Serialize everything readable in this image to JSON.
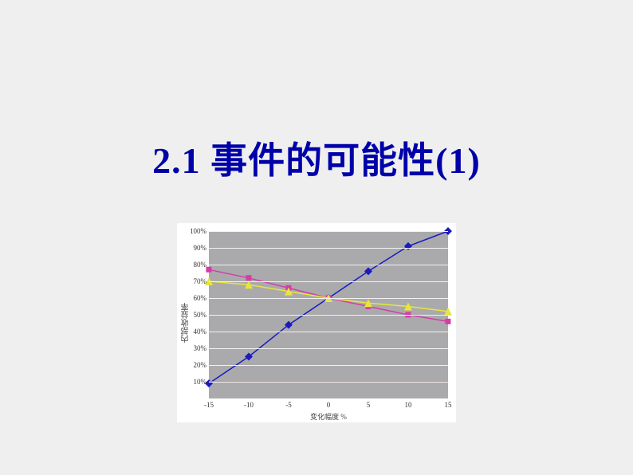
{
  "title": "2.1 事件的可能性(1)",
  "chart": {
    "type": "line",
    "background_color": "#aaaaac",
    "grid_color": "#f2f2f2",
    "outer_background": "#ffffff",
    "ylabel": "内部收益率",
    "xlabel": "变化幅度 %",
    "xlim": [
      -15,
      15
    ],
    "ylim": [
      0,
      100
    ],
    "xticks": [
      -15,
      -10,
      -5,
      0,
      5,
      10,
      15
    ],
    "yticks": [
      10,
      20,
      30,
      40,
      50,
      60,
      70,
      80,
      90,
      100
    ],
    "ytick_suffix": "%",
    "label_fontsize": 10,
    "tick_fontsize": 9,
    "title_color": "#0000aa",
    "title_fontsize": 46,
    "series": [
      {
        "name": "blue-line",
        "color": "#1a1abf",
        "marker": "diamond",
        "marker_size": 5,
        "line_width": 1.5,
        "x": [
          -15,
          -10,
          -5,
          0,
          5,
          10,
          15
        ],
        "y": [
          9,
          25,
          44,
          60,
          76,
          91,
          100
        ]
      },
      {
        "name": "pink-line",
        "color": "#d63ca8",
        "marker": "square",
        "marker_size": 5,
        "line_width": 1.5,
        "x": [
          -15,
          -10,
          -5,
          0,
          5,
          10,
          15
        ],
        "y": [
          77,
          72,
          66,
          60,
          55,
          50,
          46
        ]
      },
      {
        "name": "yellow-line",
        "color": "#e6e63c",
        "marker": "triangle",
        "marker_size": 5,
        "line_width": 1.5,
        "x": [
          -15,
          -10,
          -5,
          0,
          5,
          10,
          15
        ],
        "y": [
          70,
          68,
          64,
          60,
          57,
          55,
          52
        ]
      },
      {
        "name": "cyan-line",
        "color": "#3cc8c8",
        "marker": "none",
        "marker_size": 0,
        "line_width": 1.5,
        "x": [
          -15,
          -10,
          -5,
          0,
          5,
          10,
          15
        ],
        "y": [
          10,
          10,
          10,
          10,
          10,
          10,
          10
        ]
      }
    ]
  }
}
